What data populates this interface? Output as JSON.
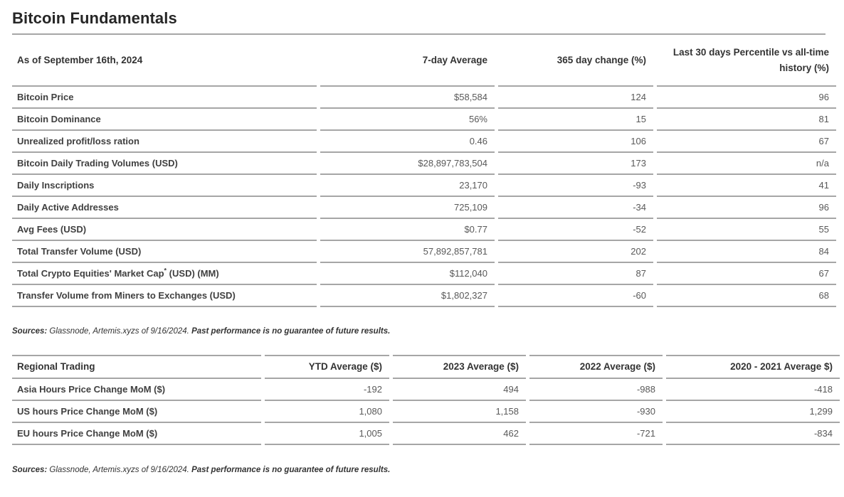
{
  "page": {
    "title": "Bitcoin Fundamentals"
  },
  "fundamentals_table": {
    "columns": [
      "As of September 16th, 2024",
      "7-day Average",
      "365 day change (%)",
      "Last 30 days Percentile vs all-time history (%)"
    ],
    "rows": [
      {
        "label": "Bitcoin Price",
        "avg": "$58,584",
        "change": "124",
        "percentile": "96"
      },
      {
        "label": "Bitcoin Dominance",
        "avg": "56%",
        "change": "15",
        "percentile": "81"
      },
      {
        "label": "Unrealized profit/loss ration",
        "avg": "0.46",
        "change": "106",
        "percentile": "67"
      },
      {
        "label": "Bitcoin Daily Trading Volumes (USD)",
        "avg": "$28,897,783,504",
        "change": "173",
        "percentile": "n/a"
      },
      {
        "label": "Daily Inscriptions",
        "avg": "23,170",
        "change": "-93",
        "percentile": "41"
      },
      {
        "label": "Daily Active Addresses",
        "avg": "725,109",
        "change": "-34",
        "percentile": "96"
      },
      {
        "label": "Avg Fees (USD)",
        "avg": "$0.77",
        "change": "-52",
        "percentile": "55"
      },
      {
        "label": "Total Transfer Volume (USD)",
        "avg": "57,892,857,781",
        "change": "202",
        "percentile": "84"
      },
      {
        "label": "Total Crypto Equities' Market Cap* (USD) (MM)",
        "avg": "$112,040",
        "change": "87",
        "percentile": "67"
      },
      {
        "label": "Transfer Volume from Miners to Exchanges (USD)",
        "avg": "$1,802,327",
        "change": "-60",
        "percentile": "68"
      }
    ]
  },
  "sources_note_1": {
    "prefix": "Sources:",
    "body": " Glassnode, Artemis.xyzs of 9/16/2024. ",
    "emphasis": "Past performance is no guarantee of future results."
  },
  "regional_table": {
    "columns": [
      "Regional Trading",
      "YTD Average ($)",
      "2023 Average ($)",
      "2022 Average ($)",
      "2020 - 2021 Average $)"
    ],
    "rows": [
      {
        "label": "Asia Hours Price Change MoM ($)",
        "ytd": "-192",
        "avg2023": "494",
        "avg2022": "-988",
        "avg2020_2021": "-418"
      },
      {
        "label": "US hours Price Change MoM ($)",
        "ytd": "1,080",
        "avg2023": "1,158",
        "avg2022": "-930",
        "avg2020_2021": "1,299"
      },
      {
        "label": "EU hours Price Change MoM ($)",
        "ytd": "1,005",
        "avg2023": "462",
        "avg2022": "-721",
        "avg2020_2021": "-834"
      }
    ]
  },
  "sources_note_2": {
    "prefix": "Sources:",
    "body": " Glassnode, Artemis.xyzs of 9/16/2024. ",
    "emphasis": "Past performance is no guarantee of future results."
  }
}
